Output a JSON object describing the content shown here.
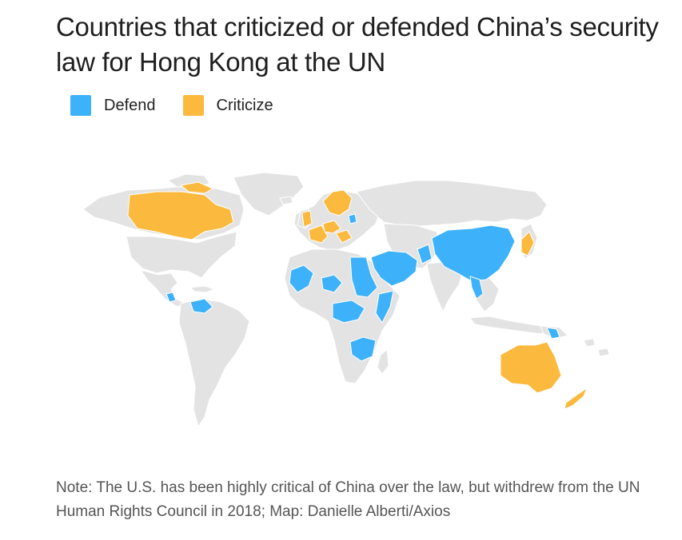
{
  "title": "Countries that criticized or defended China’s security law for Hong Kong at the UN",
  "legend": [
    {
      "label": "Defend",
      "color": "#3db2fa"
    },
    {
      "label": "Criticize",
      "color": "#fbb93d"
    }
  ],
  "colors": {
    "land": "#e3e3e3",
    "border": "#ffffff",
    "defend": "#3db2fa",
    "criticize": "#fbb93d"
  },
  "note": "Note: The U.S. has been highly critical of China over the law, but withdrew from the UN Human Rights Council in 2018; Map: Danielle Alberti/Axios"
}
